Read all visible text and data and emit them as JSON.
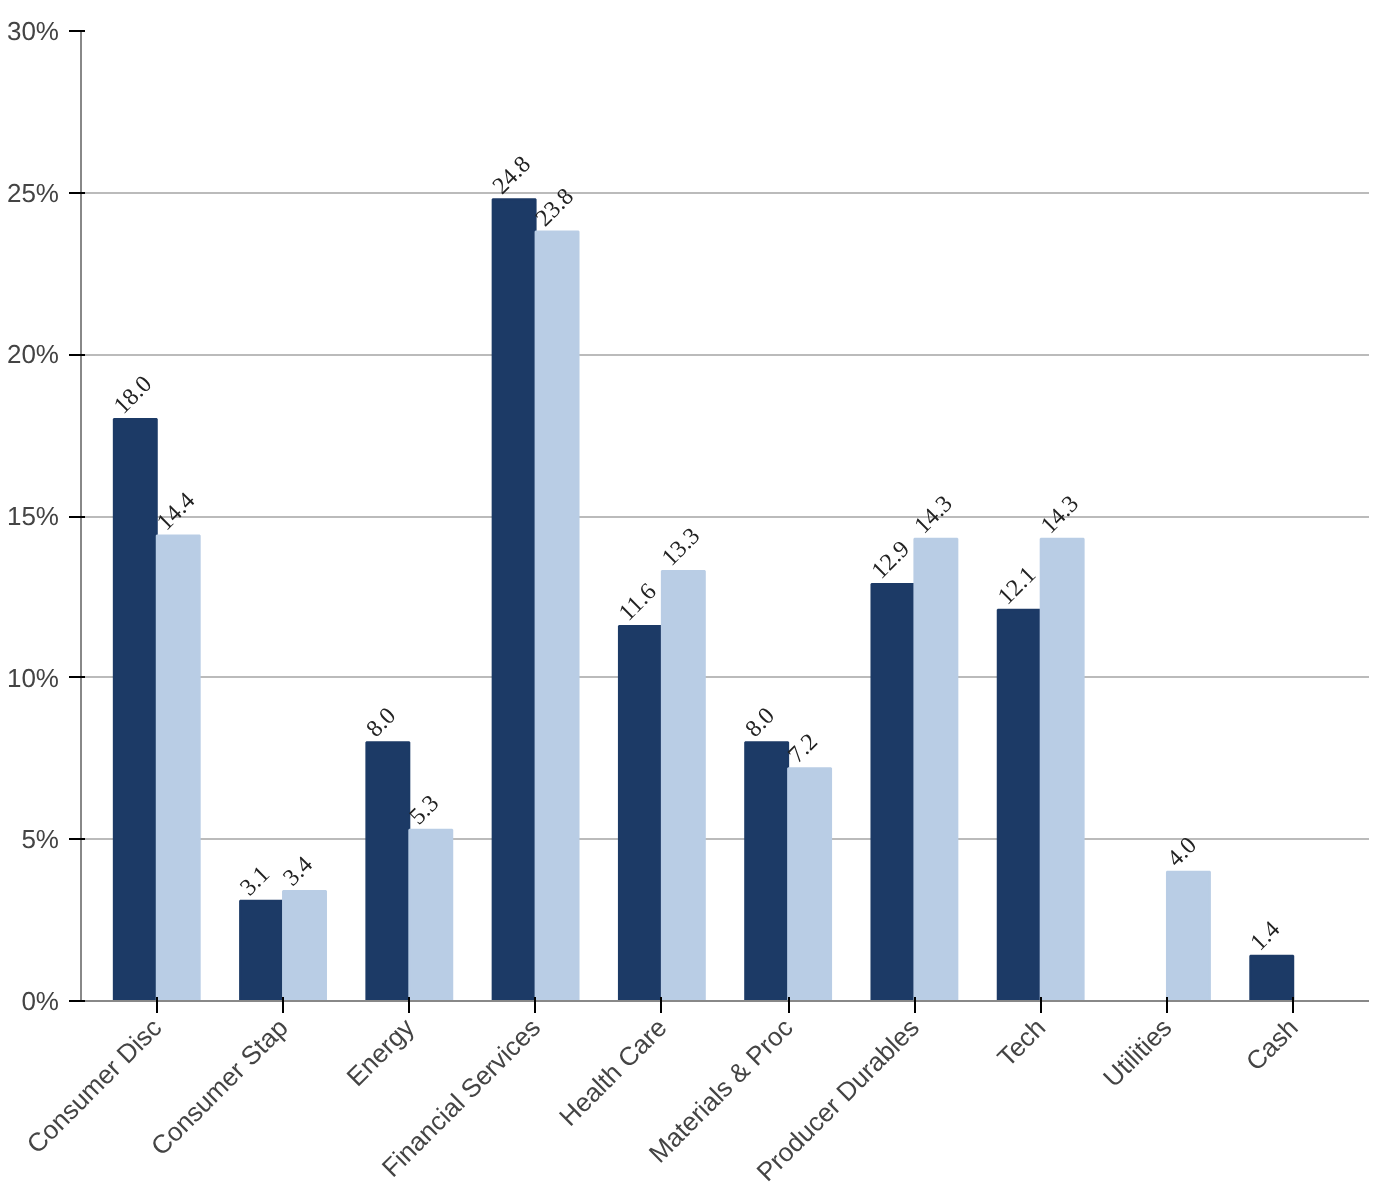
{
  "chart_data": {
    "type": "bar",
    "categories": [
      "Consumer Disc",
      "Consumer Stap",
      "Energy",
      "Financial Services",
      "Health Care",
      "Materials & Proc",
      "Producer Durables",
      "Tech",
      "Utilities",
      "Cash"
    ],
    "series": [
      {
        "color": "#1c3a66",
        "values": [
          18.0,
          3.1,
          8.0,
          24.8,
          11.6,
          8.0,
          12.9,
          12.1,
          null,
          1.4
        ],
        "value_labels": [
          "18.0",
          "3.1",
          "8.0",
          "24.8",
          "11.6",
          "8.0",
          "12.9",
          "12.1",
          null,
          "1.4"
        ]
      },
      {
        "color": "#b9cde5",
        "values": [
          14.4,
          3.4,
          5.3,
          23.8,
          13.3,
          7.2,
          14.3,
          14.3,
          4.0,
          null
        ],
        "value_labels": [
          "14.4",
          "3.4",
          "5.3",
          "23.8",
          "13.3",
          "7.2",
          "14.3",
          "14.3",
          "4.0",
          null
        ]
      }
    ],
    "ylim": [
      0,
      30
    ],
    "yticks": [
      {
        "value": 0,
        "label": "0%"
      },
      {
        "value": 5,
        "label": "5%"
      },
      {
        "value": 10,
        "label": "10%"
      },
      {
        "value": 15,
        "label": "15%"
      },
      {
        "value": 20,
        "label": "20%"
      },
      {
        "value": 25,
        "label": "25%"
      },
      {
        "value": 30,
        "label": "30%"
      }
    ],
    "grid": "y"
  }
}
